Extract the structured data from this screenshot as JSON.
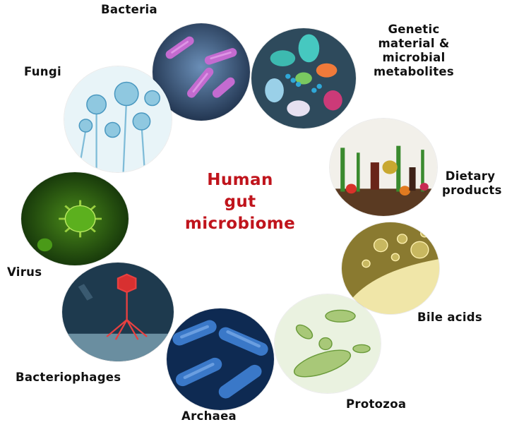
{
  "center_title": {
    "line1": "Human",
    "line2": "gut",
    "line3": "microbiome"
  },
  "labels": {
    "bacteria": "Bacteria",
    "genetic": [
      "Genetic",
      "material &",
      "microbial",
      "metabolites"
    ],
    "fungi": "Fungi",
    "dietary": [
      "Dietary",
      "products"
    ],
    "virus": "Virus",
    "bile": "Bile acids",
    "bacteriophages": "Bacteriophages",
    "archaea": "Archaea",
    "protozoa": "Protozoa"
  },
  "colors": {
    "title": "#c0141c",
    "label": "#111111"
  }
}
